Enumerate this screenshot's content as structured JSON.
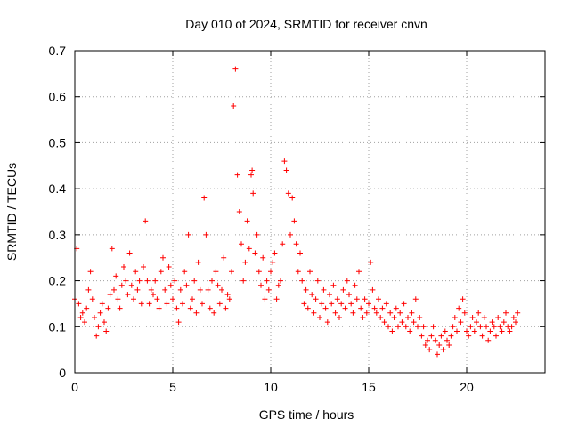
{
  "chart_data": {
    "type": "scatter",
    "title": "Day 010 of 2024, SRMTID for receiver cnvn",
    "xlabel": "GPS time / hours",
    "ylabel": "SRMTID / TECUs",
    "xlim": [
      0,
      24
    ],
    "ylim": [
      0,
      0.7
    ],
    "xticks": [
      0,
      5,
      10,
      15,
      20
    ],
    "yticks": [
      0,
      0.1,
      0.2,
      0.3,
      0.4,
      0.5,
      0.6,
      0.7
    ],
    "xtick_labels": [
      "0",
      "5",
      "10",
      "15",
      "20"
    ],
    "ytick_labels": [
      "0",
      "0.1",
      "0.2",
      "0.3",
      "0.4",
      "0.5",
      "0.6",
      "0.7"
    ],
    "grid": true,
    "marker": "plus",
    "color": "#ff0000",
    "series": [
      {
        "name": "SRMTID",
        "x": [
          0.0,
          0.1,
          0.2,
          0.3,
          0.4,
          0.5,
          0.6,
          0.7,
          0.8,
          0.9,
          1.0,
          1.1,
          1.2,
          1.3,
          1.4,
          1.5,
          1.6,
          1.7,
          1.8,
          1.9,
          2.0,
          2.1,
          2.2,
          2.3,
          2.4,
          2.5,
          2.6,
          2.7,
          2.8,
          2.9,
          3.0,
          3.1,
          3.2,
          3.3,
          3.4,
          3.5,
          3.6,
          3.7,
          3.8,
          3.9,
          4.0,
          4.1,
          4.2,
          4.3,
          4.4,
          4.5,
          4.6,
          4.7,
          4.8,
          4.9,
          5.0,
          5.1,
          5.2,
          5.3,
          5.4,
          5.5,
          5.6,
          5.7,
          5.8,
          5.9,
          6.0,
          6.1,
          6.2,
          6.3,
          6.4,
          6.5,
          6.6,
          6.7,
          6.8,
          6.9,
          7.0,
          7.1,
          7.2,
          7.3,
          7.4,
          7.5,
          7.6,
          7.7,
          7.8,
          7.9,
          8.0,
          8.1,
          8.2,
          8.3,
          8.4,
          8.5,
          8.6,
          8.7,
          8.8,
          8.9,
          9.0,
          9.05,
          9.1,
          9.2,
          9.3,
          9.4,
          9.5,
          9.6,
          9.7,
          9.8,
          9.9,
          10.0,
          10.1,
          10.2,
          10.3,
          10.4,
          10.5,
          10.6,
          10.7,
          10.8,
          10.9,
          11.0,
          11.1,
          11.2,
          11.3,
          11.4,
          11.5,
          11.6,
          11.7,
          11.8,
          11.9,
          12.0,
          12.1,
          12.2,
          12.3,
          12.4,
          12.5,
          12.6,
          12.7,
          12.8,
          12.9,
          13.0,
          13.1,
          13.2,
          13.3,
          13.4,
          13.5,
          13.6,
          13.7,
          13.8,
          13.9,
          14.0,
          14.1,
          14.2,
          14.3,
          14.4,
          14.5,
          14.6,
          14.7,
          14.8,
          14.9,
          15.0,
          15.1,
          15.2,
          15.3,
          15.4,
          15.5,
          15.6,
          15.7,
          15.8,
          15.9,
          16.0,
          16.1,
          16.2,
          16.3,
          16.4,
          16.5,
          16.6,
          16.7,
          16.8,
          16.9,
          17.0,
          17.1,
          17.2,
          17.3,
          17.4,
          17.5,
          17.6,
          17.7,
          17.8,
          17.9,
          18.0,
          18.1,
          18.2,
          18.3,
          18.4,
          18.5,
          18.6,
          18.7,
          18.8,
          18.9,
          19.0,
          19.1,
          19.2,
          19.3,
          19.4,
          19.5,
          19.6,
          19.7,
          19.8,
          19.9,
          20.0,
          20.1,
          20.2,
          20.3,
          20.4,
          20.5,
          20.6,
          20.7,
          20.8,
          20.9,
          21.0,
          21.1,
          21.2,
          21.3,
          21.4,
          21.5,
          21.6,
          21.7,
          21.8,
          21.9,
          22.0,
          22.1,
          22.2,
          22.3,
          22.4,
          22.5,
          22.6
        ],
        "y": [
          0.16,
          0.27,
          0.15,
          0.12,
          0.13,
          0.11,
          0.14,
          0.18,
          0.22,
          0.16,
          0.12,
          0.08,
          0.1,
          0.13,
          0.15,
          0.11,
          0.09,
          0.14,
          0.17,
          0.27,
          0.18,
          0.21,
          0.16,
          0.14,
          0.19,
          0.23,
          0.2,
          0.17,
          0.26,
          0.19,
          0.16,
          0.22,
          0.18,
          0.2,
          0.15,
          0.23,
          0.33,
          0.2,
          0.15,
          0.18,
          0.17,
          0.2,
          0.16,
          0.14,
          0.22,
          0.25,
          0.18,
          0.15,
          0.23,
          0.19,
          0.16,
          0.2,
          0.14,
          0.11,
          0.18,
          0.15,
          0.22,
          0.19,
          0.3,
          0.14,
          0.16,
          0.2,
          0.13,
          0.24,
          0.18,
          0.15,
          0.38,
          0.3,
          0.18,
          0.14,
          0.2,
          0.13,
          0.22,
          0.19,
          0.15,
          0.18,
          0.25,
          0.14,
          0.17,
          0.16,
          0.22,
          0.58,
          0.66,
          0.43,
          0.35,
          0.28,
          0.2,
          0.24,
          0.33,
          0.27,
          0.43,
          0.44,
          0.39,
          0.26,
          0.3,
          0.22,
          0.19,
          0.25,
          0.16,
          0.2,
          0.18,
          0.22,
          0.24,
          0.26,
          0.16,
          0.19,
          0.2,
          0.28,
          0.46,
          0.44,
          0.39,
          0.3,
          0.38,
          0.33,
          0.28,
          0.22,
          0.26,
          0.2,
          0.15,
          0.18,
          0.14,
          0.22,
          0.17,
          0.13,
          0.16,
          0.2,
          0.12,
          0.15,
          0.18,
          0.14,
          0.11,
          0.17,
          0.15,
          0.19,
          0.13,
          0.16,
          0.12,
          0.15,
          0.18,
          0.14,
          0.2,
          0.17,
          0.15,
          0.13,
          0.19,
          0.16,
          0.22,
          0.14,
          0.12,
          0.16,
          0.13,
          0.15,
          0.24,
          0.18,
          0.14,
          0.13,
          0.16,
          0.12,
          0.14,
          0.11,
          0.15,
          0.1,
          0.13,
          0.09,
          0.12,
          0.14,
          0.1,
          0.13,
          0.11,
          0.15,
          0.1,
          0.12,
          0.09,
          0.13,
          0.11,
          0.16,
          0.1,
          0.12,
          0.08,
          0.1,
          0.06,
          0.07,
          0.05,
          0.08,
          0.1,
          0.07,
          0.04,
          0.06,
          0.08,
          0.05,
          0.09,
          0.07,
          0.06,
          0.08,
          0.1,
          0.12,
          0.09,
          0.14,
          0.11,
          0.16,
          0.13,
          0.09,
          0.08,
          0.1,
          0.12,
          0.09,
          0.11,
          0.13,
          0.1,
          0.08,
          0.12,
          0.1,
          0.07,
          0.09,
          0.11,
          0.1,
          0.08,
          0.12,
          0.1,
          0.09,
          0.11,
          0.13,
          0.1,
          0.09,
          0.1,
          0.12,
          0.11,
          0.13
        ]
      }
    ]
  }
}
